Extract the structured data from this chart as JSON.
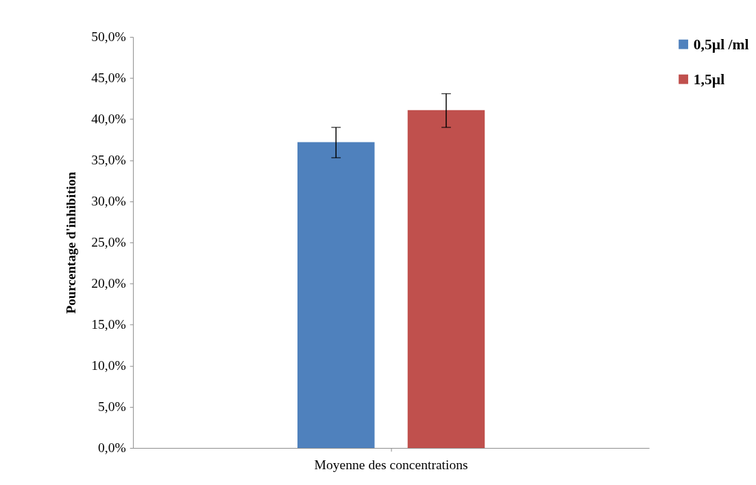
{
  "chart_data": {
    "type": "bar",
    "ylabel": "Pourcentage d'inhibition",
    "categories": [
      "Moyenne des concentrations"
    ],
    "series": [
      {
        "name": "0,5µl /ml",
        "color": "#4f81bd",
        "values": [
          37.2
        ],
        "errors": [
          [
            35.3,
            39.0
          ]
        ]
      },
      {
        "name": "1,5µl",
        "color": "#c0504d",
        "values": [
          41.1
        ],
        "errors": [
          [
            39.0,
            43.1
          ]
        ]
      }
    ],
    "ylim": [
      0,
      50
    ],
    "yticks": [
      {
        "value": 0,
        "label": "0,0%"
      },
      {
        "value": 5,
        "label": "5,0%"
      },
      {
        "value": 10,
        "label": "10,0%"
      },
      {
        "value": 15,
        "label": "15,0%"
      },
      {
        "value": 20,
        "label": "20,0%"
      },
      {
        "value": 25,
        "label": "25,0%"
      },
      {
        "value": 30,
        "label": "30,0%"
      },
      {
        "value": 35,
        "label": "35,0%"
      },
      {
        "value": 40,
        "label": "40,0%"
      },
      {
        "value": 45,
        "label": "45,0%"
      },
      {
        "value": 50,
        "label": "50,0%"
      }
    ],
    "grid": false,
    "legend": "top right"
  }
}
